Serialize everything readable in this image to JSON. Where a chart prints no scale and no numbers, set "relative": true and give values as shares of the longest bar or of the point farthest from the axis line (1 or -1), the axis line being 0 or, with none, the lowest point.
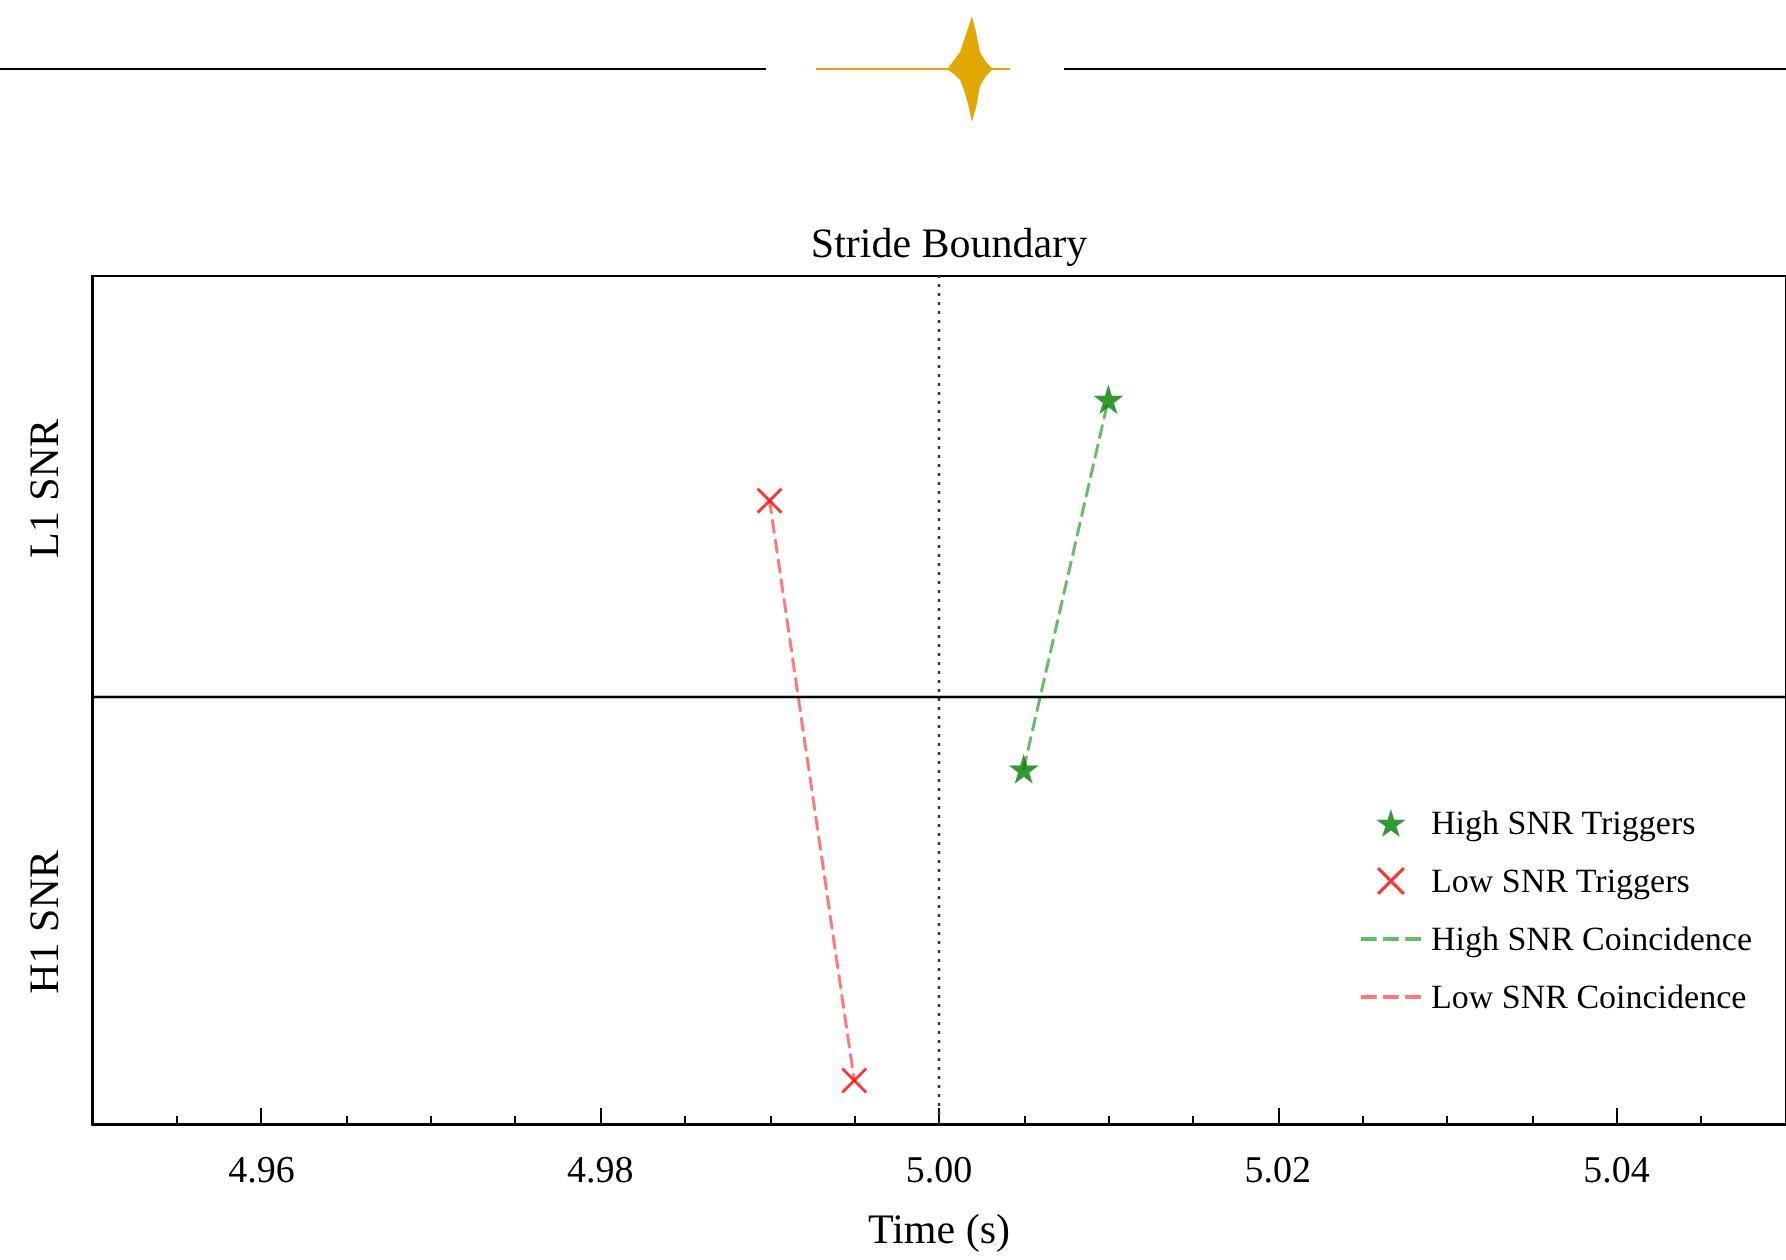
{
  "chart_data": {
    "type": "scatter",
    "title": "Stride Boundary",
    "xlabel": "Time (s)",
    "relative": true,
    "annotations": [
      "L1 SNR",
      "H1 SNR"
    ],
    "xlim": [
      4.95,
      5.05
    ],
    "xticks": [
      {
        "value": 4.955,
        "label": null
      },
      {
        "value": 4.96,
        "label": "4.96"
      },
      {
        "value": 4.965,
        "label": null
      },
      {
        "value": 4.97,
        "label": null
      },
      {
        "value": 4.975,
        "label": null
      },
      {
        "value": 4.98,
        "label": "4.98"
      },
      {
        "value": 4.985,
        "label": null
      },
      {
        "value": 4.99,
        "label": null
      },
      {
        "value": 4.995,
        "label": null
      },
      {
        "value": 5.0,
        "label": "5.00"
      },
      {
        "value": 5.005,
        "label": null
      },
      {
        "value": 5.01,
        "label": null
      },
      {
        "value": 5.015,
        "label": null
      },
      {
        "value": 5.02,
        "label": "5.02"
      },
      {
        "value": 5.025,
        "label": null
      },
      {
        "value": 5.03,
        "label": null
      },
      {
        "value": 5.035,
        "label": null
      },
      {
        "value": 5.04,
        "label": "5.04"
      },
      {
        "value": 5.045,
        "label": null
      }
    ],
    "series": [
      {
        "name": "High SNR Triggers",
        "marker": "star",
        "color": "#008000",
        "x": [
          5.005,
          5.01
        ],
        "values": [
          0.49,
          1
        ]
      },
      {
        "name": "Low SNR Triggers",
        "marker": "cross",
        "color": "#ff0000",
        "x": [
          4.99,
          4.995
        ],
        "values": [
          0.86,
          0.06
        ]
      },
      {
        "name": "High SNR Coincidence",
        "type": "line",
        "line_style": "dashed",
        "marker": "none",
        "color": "#66bb66",
        "x": [
          5.005,
          5.01
        ],
        "values": [
          0.49,
          1
        ]
      },
      {
        "name": "Low SNR Coincidence",
        "type": "line",
        "line_style": "dashed",
        "marker": "none",
        "color": "#ff7777",
        "x": [
          4.99,
          4.995
        ],
        "values": [
          0.86,
          0.06
        ]
      }
    ],
    "ref_lines": [
      {
        "axis": "x",
        "value": 5.0,
        "line_style": "dotted",
        "color": "#333333"
      },
      {
        "axis": "y",
        "value": 0.59,
        "line_style": "solid",
        "color": "#000000"
      }
    ],
    "legend": "right",
    "grid": false
  }
}
